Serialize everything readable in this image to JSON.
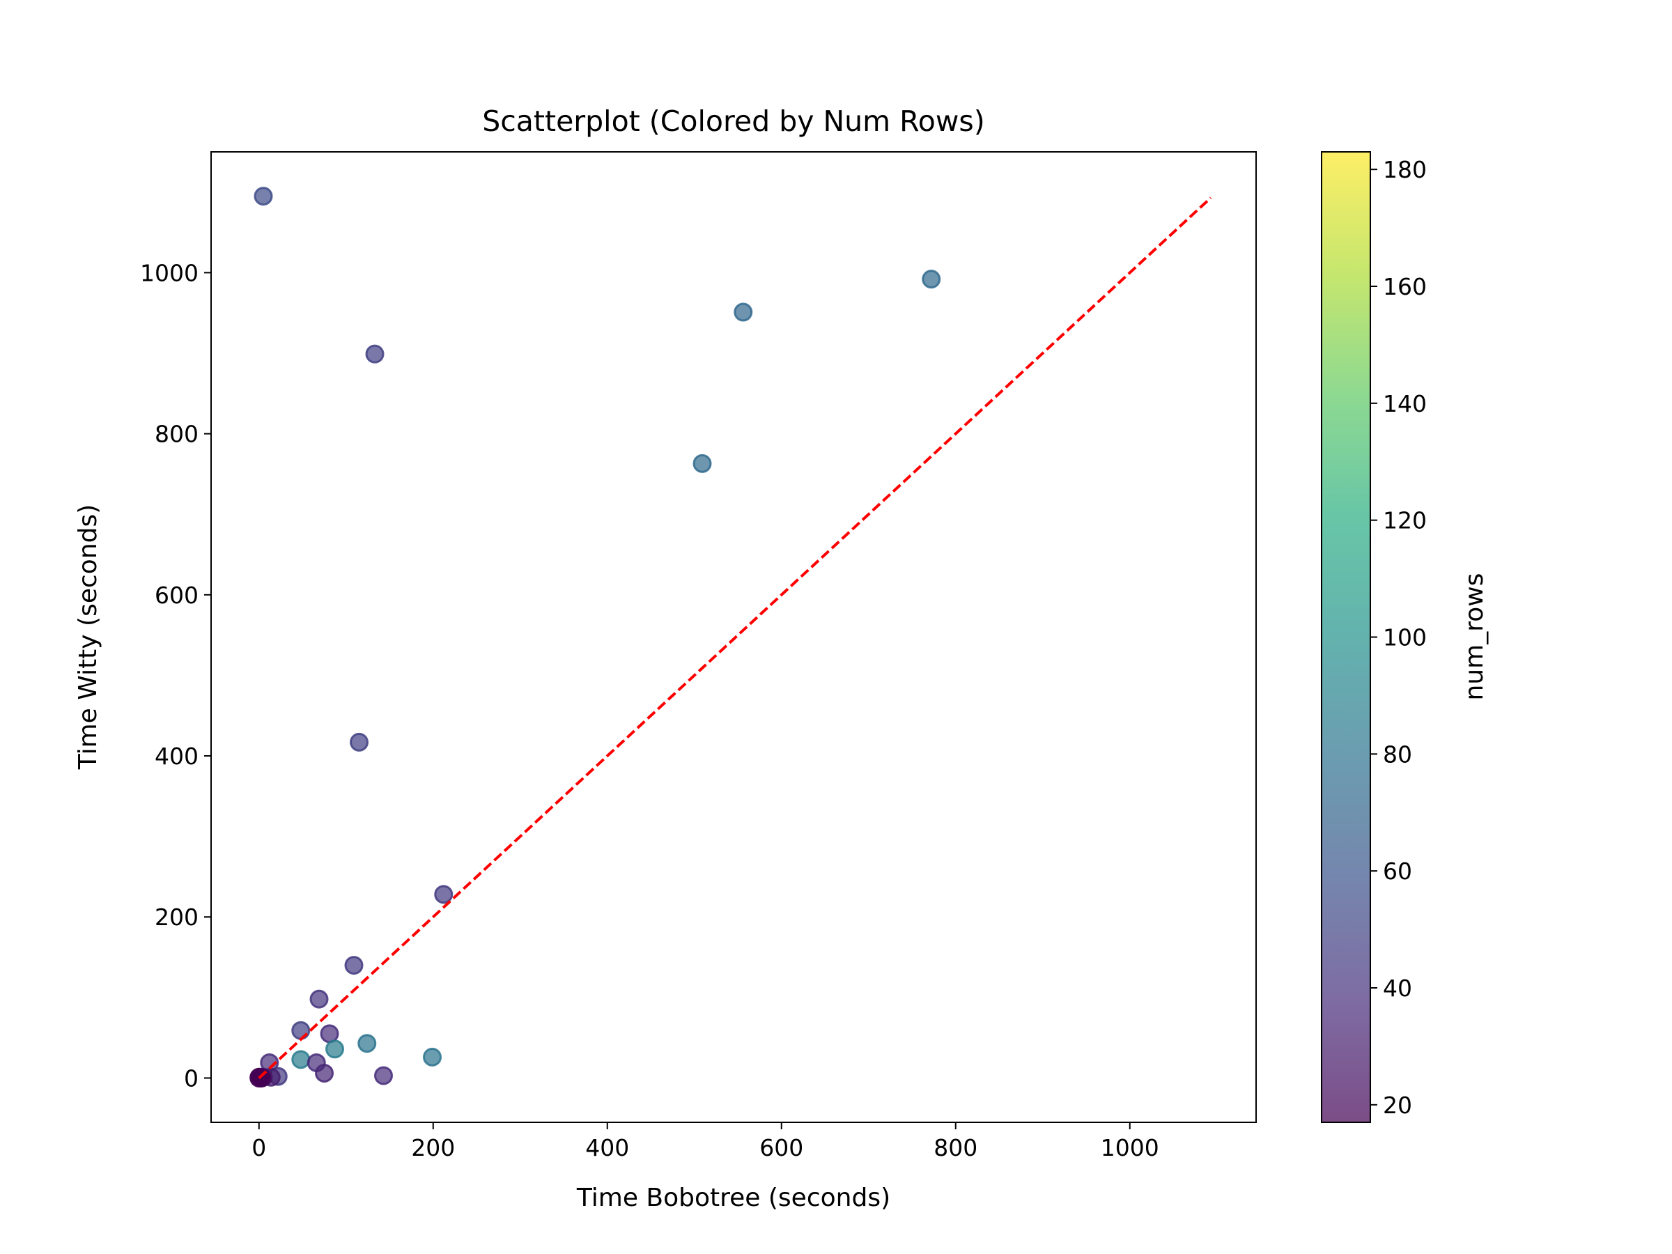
{
  "chart_data": {
    "type": "scatter",
    "title": "Scatterplot (Colored by Num Rows)",
    "xlabel": "Time Bobotree (seconds)",
    "ylabel": "Time Witty (seconds)",
    "xlim": [
      -55,
      1145
    ],
    "ylim": [
      -55,
      1150
    ],
    "xticks": [
      0,
      200,
      400,
      600,
      800,
      1000
    ],
    "yticks": [
      0,
      200,
      400,
      600,
      800,
      1000
    ],
    "grid": false,
    "reference_line": {
      "from": [
        0,
        0
      ],
      "to": [
        1093,
        1093
      ],
      "color": "#ff0000",
      "style": "dashed"
    },
    "colorbar": {
      "label": "num_rows",
      "colormap": "viridis",
      "range": [
        17,
        183
      ],
      "ticks": [
        20,
        40,
        60,
        80,
        100,
        120,
        140,
        160,
        180
      ]
    },
    "marker_alpha": 0.7,
    "points": [
      {
        "x": 5,
        "y": 1095,
        "c": 55
      },
      {
        "x": 772,
        "y": 992,
        "c": 74
      },
      {
        "x": 556,
        "y": 951,
        "c": 72
      },
      {
        "x": 133,
        "y": 899,
        "c": 48
      },
      {
        "x": 509,
        "y": 763,
        "c": 74
      },
      {
        "x": 115,
        "y": 417,
        "c": 48
      },
      {
        "x": 212,
        "y": 228,
        "c": 45
      },
      {
        "x": 109,
        "y": 140,
        "c": 45
      },
      {
        "x": 69,
        "y": 98,
        "c": 42
      },
      {
        "x": 48,
        "y": 59,
        "c": 48
      },
      {
        "x": 81,
        "y": 55,
        "c": 38
      },
      {
        "x": 124,
        "y": 43,
        "c": 80
      },
      {
        "x": 87,
        "y": 36,
        "c": 85
      },
      {
        "x": 199,
        "y": 26,
        "c": 80
      },
      {
        "x": 48,
        "y": 23,
        "c": 85
      },
      {
        "x": 66,
        "y": 19,
        "c": 38
      },
      {
        "x": 12,
        "y": 19,
        "c": 38
      },
      {
        "x": 75,
        "y": 6,
        "c": 35
      },
      {
        "x": 143,
        "y": 3,
        "c": 38
      },
      {
        "x": 22,
        "y": 2,
        "c": 45
      },
      {
        "x": 14,
        "y": 1,
        "c": 30
      },
      {
        "x": 5,
        "y": 1,
        "c": 25
      },
      {
        "x": 2,
        "y": 0,
        "c": 18
      },
      {
        "x": 0,
        "y": 0,
        "c": 17
      },
      {
        "x": 1,
        "y": 1,
        "c": 17
      },
      {
        "x": 3,
        "y": 0,
        "c": 18
      },
      {
        "x": 0,
        "y": 1,
        "c": 17
      }
    ]
  }
}
